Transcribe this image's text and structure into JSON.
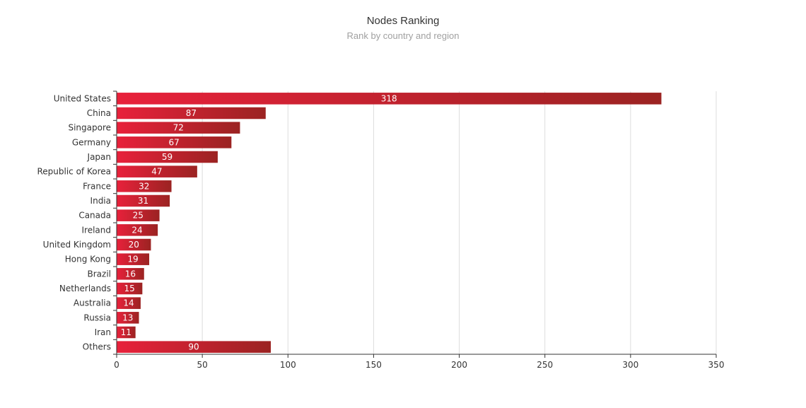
{
  "chart_data": {
    "type": "bar",
    "orientation": "horizontal",
    "title": "Nodes Ranking",
    "subtitle": "Rank by country and region",
    "categories": [
      "United States",
      "China",
      "Singapore",
      "Germany",
      "Japan",
      "Republic of Korea",
      "France",
      "India",
      "Canada",
      "Ireland",
      "United Kingdom",
      "Hong Kong",
      "Brazil",
      "Netherlands",
      "Australia",
      "Russia",
      "Iran",
      "Others"
    ],
    "values": [
      318,
      87,
      72,
      67,
      59,
      47,
      32,
      31,
      25,
      24,
      20,
      19,
      16,
      15,
      14,
      13,
      11,
      90
    ],
    "xlim": [
      0,
      350
    ],
    "xticks": [
      0,
      50,
      100,
      150,
      200,
      250,
      300,
      350
    ],
    "grid": "vertical",
    "data_labels": true,
    "colors": {
      "bar_start": "#e8213b",
      "bar_end": "#9b2322",
      "grid": "#dddddd",
      "axis": "#333333",
      "text": "#333333",
      "value_text": "#ffffff"
    }
  }
}
